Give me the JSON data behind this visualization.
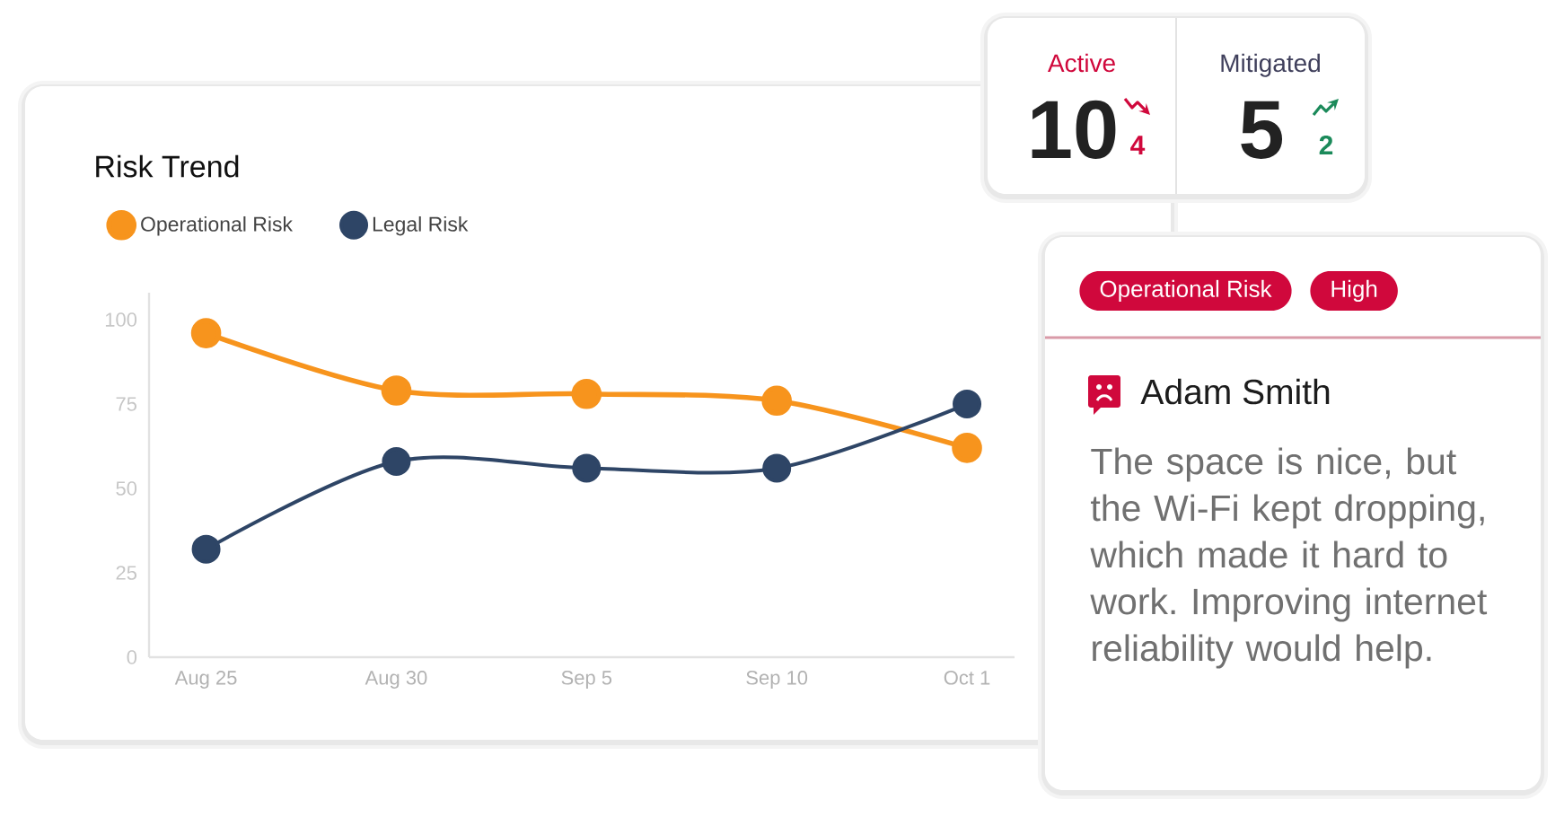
{
  "chart_data": [
    {
      "type": "line",
      "title": "Risk Trend",
      "categories": [
        "Aug 25",
        "Aug 30",
        "Sep 5",
        "Sep 10",
        "Oct 1"
      ],
      "series": [
        {
          "name": "Operational Risk",
          "color": "#f7941d",
          "values": [
            96,
            79,
            78,
            76,
            62
          ]
        },
        {
          "name": "Legal Risk",
          "color": "#2e4566",
          "values": [
            32,
            58,
            56,
            56,
            75
          ]
        }
      ],
      "ylim": [
        0,
        108
      ],
      "yticks": [
        0,
        25,
        50,
        75,
        100
      ],
      "legend": "top left",
      "marker": "circle",
      "line_style": "solid"
    },
    {
      "type": "other",
      "categories": [
        "Active",
        "Mitigated"
      ],
      "annotations": [
        "10",
        "4",
        "5",
        "2"
      ]
    },
    {
      "type": "other",
      "title": "Adam Smith",
      "categories": [
        "Operational Risk",
        "High"
      ],
      "annotations": [
        "The space is nice, but the Wi-Fi kept dropping, which made it hard to work. Improving internet reliability would help."
      ]
    }
  ]
}
